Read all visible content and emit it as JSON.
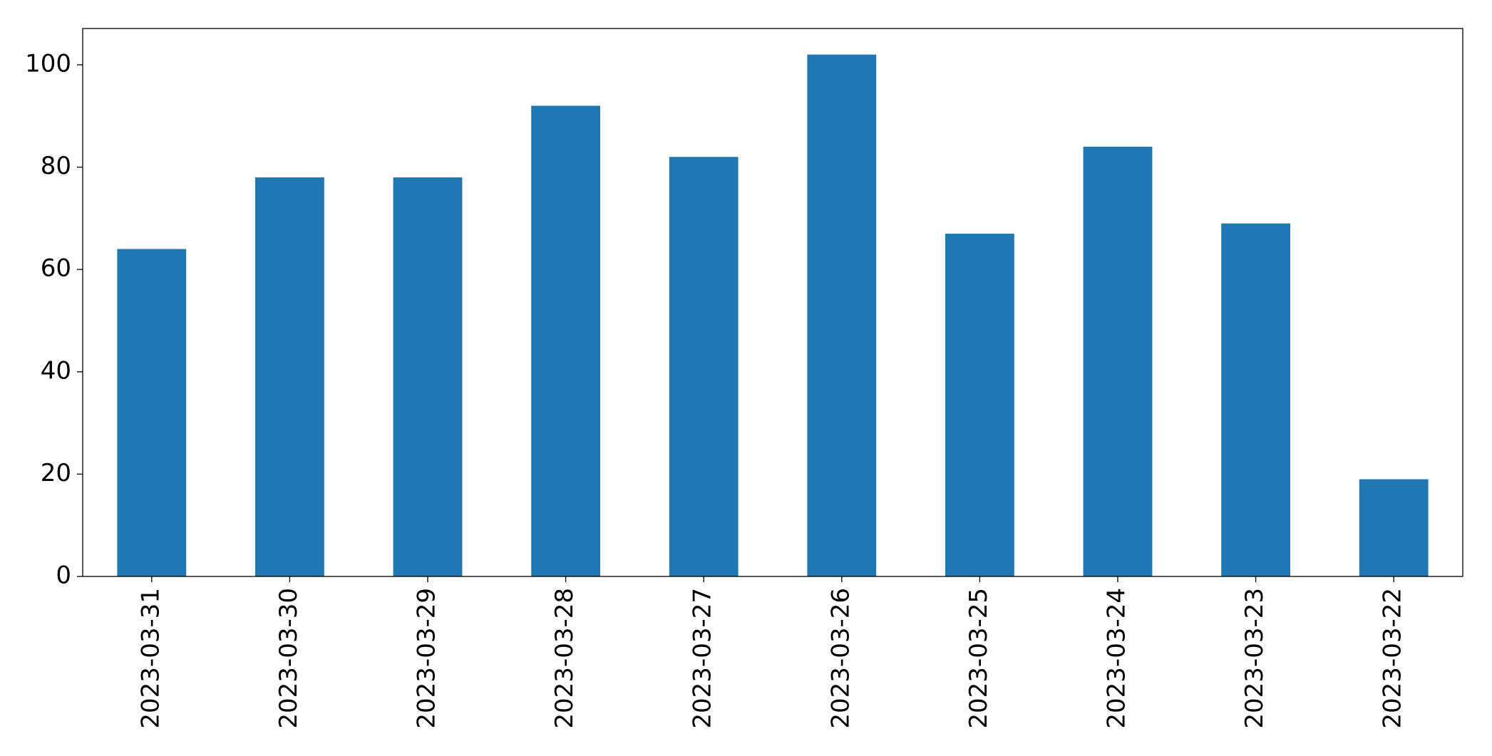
{
  "chart_data": {
    "type": "bar",
    "categories": [
      "2023-03-31",
      "2023-03-30",
      "2023-03-29",
      "2023-03-28",
      "2023-03-27",
      "2023-03-26",
      "2023-03-25",
      "2023-03-24",
      "2023-03-23",
      "2023-03-22"
    ],
    "values": [
      64,
      78,
      78,
      92,
      82,
      102,
      67,
      84,
      69,
      19
    ],
    "color": "#1f77b4",
    "ylim": [
      0,
      107.1
    ],
    "yticks": [
      0,
      20,
      40,
      60,
      80,
      100
    ],
    "grid": false
  }
}
